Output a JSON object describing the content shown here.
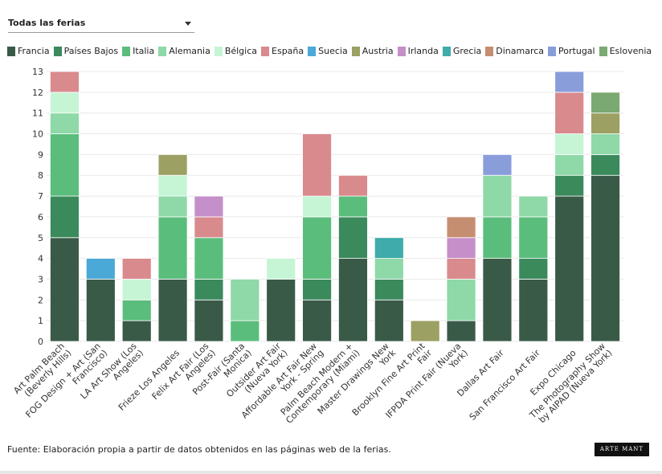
{
  "filter": {
    "label": "Todas las ferias"
  },
  "chart_data": {
    "type": "stacked-bar",
    "categories": [
      [
        "Art Palm Beach",
        "(Beverly Hills)"
      ],
      [
        "FOG Design + Art (San",
        "Francisco)"
      ],
      [
        "LA Art Show (Los",
        "Angeles)"
      ],
      [
        "Frieze Los Angeles"
      ],
      [
        "Felix Art Fair (Los",
        "Angeles)"
      ],
      [
        "Post-Fair (Santa",
        "Monica)"
      ],
      [
        "Outsider Art Fair",
        "(Nueva York)"
      ],
      [
        "Affordable Art Fair New",
        "York - Spring"
      ],
      [
        "Palm Beach Modern +",
        "Contemporary (Miami)"
      ],
      [
        "Master Drawings New",
        "York"
      ],
      [
        "Brooklyn Fine Art Print",
        "Fair"
      ],
      [
        "IFPDA Print Fair (Nueva",
        "York)"
      ],
      [
        "Dallas Art Fair"
      ],
      [
        "San Francisco Art Fair"
      ],
      [
        "Expo Chicago"
      ],
      [
        "The Photography Show",
        "by AIPAD (Nueva York)"
      ]
    ],
    "series": [
      {
        "name": "Francia",
        "color": "#3a5a48",
        "values": [
          5,
          3,
          1,
          3,
          2,
          0,
          3,
          2,
          4,
          2,
          0,
          1,
          4,
          3,
          7,
          8
        ]
      },
      {
        "name": "Países Bajos",
        "color": "#3a8a5c",
        "values": [
          2,
          0,
          0,
          0,
          1,
          0,
          0,
          1,
          2,
          1,
          0,
          0,
          0,
          1,
          1,
          1
        ]
      },
      {
        "name": "Italia",
        "color": "#5bbd7c",
        "values": [
          3,
          0,
          1,
          3,
          2,
          1,
          0,
          3,
          1,
          0,
          0,
          0,
          2,
          2,
          0,
          0
        ]
      },
      {
        "name": "Alemania",
        "color": "#8fd8a8",
        "values": [
          1,
          0,
          0,
          1,
          0,
          2,
          0,
          0,
          0,
          1,
          0,
          2,
          2,
          1,
          1,
          1
        ]
      },
      {
        "name": "Bélgica",
        "color": "#c5f5d5",
        "values": [
          1,
          0,
          1,
          1,
          0,
          0,
          1,
          1,
          0,
          0,
          0,
          0,
          0,
          0,
          1,
          0
        ]
      },
      {
        "name": "España",
        "color": "#d98a8d",
        "values": [
          1,
          0,
          1,
          0,
          1,
          0,
          0,
          3,
          1,
          0,
          0,
          1,
          0,
          0,
          2,
          0
        ]
      },
      {
        "name": "Suecia",
        "color": "#4aa9d6",
        "values": [
          0,
          1,
          0,
          0,
          0,
          0,
          0,
          0,
          0,
          0,
          0,
          0,
          0,
          0,
          0,
          0
        ]
      },
      {
        "name": "Austria",
        "color": "#9ca062",
        "values": [
          0,
          0,
          0,
          1,
          0,
          0,
          0,
          0,
          0,
          0,
          1,
          0,
          0,
          0,
          0,
          1
        ]
      },
      {
        "name": "Irlanda",
        "color": "#c58fc9",
        "values": [
          0,
          0,
          0,
          0,
          1,
          0,
          0,
          0,
          0,
          0,
          0,
          1,
          0,
          0,
          0,
          0
        ]
      },
      {
        "name": "Grecia",
        "color": "#3fabab",
        "values": [
          0,
          0,
          0,
          0,
          0,
          0,
          0,
          0,
          0,
          1,
          0,
          0,
          0,
          0,
          0,
          0
        ]
      },
      {
        "name": "Dinamarca",
        "color": "#c68e70",
        "values": [
          0,
          0,
          0,
          0,
          0,
          0,
          0,
          0,
          0,
          0,
          0,
          1,
          0,
          0,
          0,
          0
        ]
      },
      {
        "name": "Portugal",
        "color": "#8a9ddb",
        "values": [
          0,
          0,
          0,
          0,
          0,
          0,
          0,
          0,
          0,
          0,
          0,
          0,
          1,
          0,
          1,
          0
        ]
      },
      {
        "name": "Eslovenia",
        "color": "#7aaa72",
        "values": [
          0,
          0,
          0,
          0,
          0,
          0,
          0,
          0,
          0,
          0,
          0,
          0,
          0,
          0,
          0,
          1
        ]
      }
    ],
    "ylim": [
      0,
      13
    ],
    "yticks": [
      0,
      1,
      2,
      3,
      4,
      5,
      6,
      7,
      8,
      9,
      10,
      11,
      12,
      13
    ],
    "grid": true
  },
  "source": "Fuente: Elaboración propia a partir de datos obtenidos en las páginas web de la ferias.",
  "logo": "ARTE MANT"
}
